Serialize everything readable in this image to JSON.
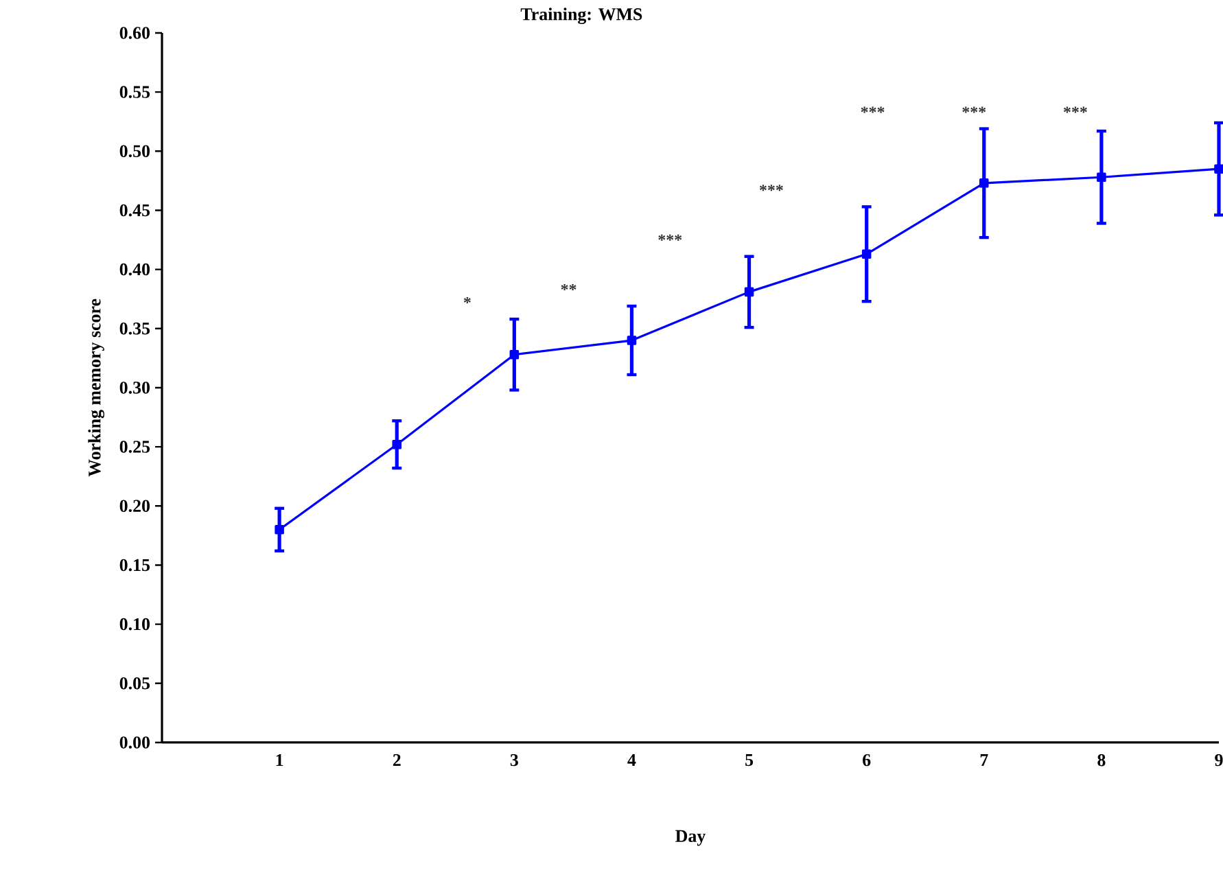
{
  "chart_data": {
    "type": "line",
    "title": "Training: WMS",
    "xlabel": "Day",
    "ylabel": "Working memory score",
    "x": [
      1,
      2,
      3,
      4,
      5,
      6,
      7,
      8,
      9
    ],
    "series": [
      {
        "color": "#0000ff",
        "values": [
          0.18,
          0.252,
          0.328,
          0.34,
          0.381,
          0.413,
          0.473,
          0.478,
          0.485
        ],
        "errors": [
          0.018,
          0.02,
          0.03,
          0.029,
          0.03,
          0.04,
          0.046,
          0.039,
          0.039
        ]
      }
    ],
    "xlim": [
      0,
      9
    ],
    "xticks": [
      1,
      2,
      3,
      4,
      5,
      6,
      7,
      8,
      9
    ],
    "ylim": [
      0,
      0.6
    ],
    "yticks": [
      {
        "value": 0,
        "label": "0.00"
      },
      {
        "value": 0.05,
        "label": "0.05"
      },
      {
        "value": 0.1,
        "label": "0.10"
      },
      {
        "value": 0.15,
        "label": "0.15"
      },
      {
        "value": 0.2,
        "label": "0.20"
      },
      {
        "value": 0.25,
        "label": "0.25"
      },
      {
        "value": 0.3,
        "label": "0.30"
      },
      {
        "value": 0.35,
        "label": "0.35"
      },
      {
        "value": 0.4,
        "label": "0.40"
      },
      {
        "value": 0.45,
        "label": "0.45"
      },
      {
        "value": 0.5,
        "label": "0.50"
      },
      {
        "value": 0.55,
        "label": "0.55"
      },
      {
        "value": 0.6,
        "label": "0.60"
      }
    ],
    "annotations": [
      "*",
      "**",
      "***",
      "***",
      "***",
      "***",
      "***"
    ],
    "grid": false,
    "legend": false,
    "marker": "square",
    "line_style": "solid"
  }
}
